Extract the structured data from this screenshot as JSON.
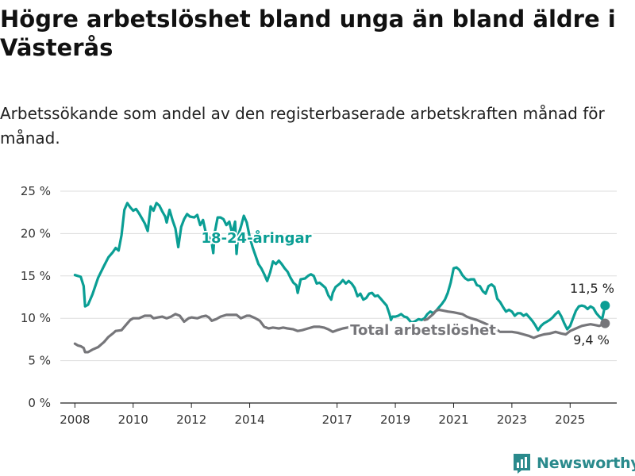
{
  "title": "Högre arbetslöshet bland unga än bland äldre i Västerås",
  "subtitle": "Arbetssökande som andel av den registerbaserade arbetskraften månad för månad.",
  "brand": "Newsworthy",
  "colors": {
    "youth": "#0a9e94",
    "total": "#76767a",
    "grid": "#dddddd",
    "brand": "#2a8a8c"
  },
  "chart_data": {
    "type": "line",
    "x_unit": "year (decimal)",
    "ylim": [
      0,
      25
    ],
    "xlim": [
      2007.5,
      2026.6
    ],
    "y_ticks": [
      0,
      5,
      10,
      15,
      20,
      25
    ],
    "y_tick_labels": [
      "0 %",
      "5 %",
      "10 %",
      "15 %",
      "20 %",
      "25 %"
    ],
    "x_ticks": [
      2008,
      2010,
      2012,
      2014,
      2017,
      2019,
      2021,
      2023,
      2025
    ],
    "x_tick_labels": [
      "2008",
      "2010",
      "2012",
      "2014",
      "2017",
      "2019",
      "2021",
      "2023",
      "2025"
    ],
    "grid": "horizontal",
    "series": [
      {
        "name": "18-24-åringar",
        "end_label": "11,5 %",
        "points": [
          [
            2008.0,
            15.1
          ],
          [
            2008.1,
            15.0
          ],
          [
            2008.2,
            14.9
          ],
          [
            2008.3,
            13.8
          ],
          [
            2008.35,
            11.4
          ],
          [
            2008.45,
            11.6
          ],
          [
            2008.6,
            12.8
          ],
          [
            2008.8,
            14.8
          ],
          [
            2009.0,
            16.2
          ],
          [
            2009.15,
            17.2
          ],
          [
            2009.3,
            17.8
          ],
          [
            2009.4,
            18.3
          ],
          [
            2009.5,
            18.0
          ],
          [
            2009.6,
            19.8
          ],
          [
            2009.7,
            22.8
          ],
          [
            2009.8,
            23.6
          ],
          [
            2009.9,
            23.1
          ],
          [
            2010.0,
            22.7
          ],
          [
            2010.1,
            22.9
          ],
          [
            2010.2,
            22.4
          ],
          [
            2010.3,
            21.8
          ],
          [
            2010.4,
            21.2
          ],
          [
            2010.5,
            20.3
          ],
          [
            2010.6,
            23.2
          ],
          [
            2010.7,
            22.7
          ],
          [
            2010.8,
            23.6
          ],
          [
            2010.9,
            23.3
          ],
          [
            2011.0,
            22.6
          ],
          [
            2011.1,
            22.0
          ],
          [
            2011.15,
            21.3
          ],
          [
            2011.25,
            22.8
          ],
          [
            2011.35,
            21.6
          ],
          [
            2011.45,
            20.6
          ],
          [
            2011.55,
            18.4
          ],
          [
            2011.65,
            20.8
          ],
          [
            2011.75,
            21.7
          ],
          [
            2011.85,
            22.3
          ],
          [
            2011.95,
            22.0
          ],
          [
            2012.1,
            21.9
          ],
          [
            2012.2,
            22.2
          ],
          [
            2012.3,
            21.0
          ],
          [
            2012.4,
            21.6
          ],
          [
            2012.5,
            20.0
          ],
          [
            2012.6,
            19.6
          ],
          [
            2012.7,
            18.9
          ],
          [
            2012.75,
            17.7
          ],
          [
            2012.8,
            20.1
          ],
          [
            2012.9,
            21.9
          ],
          [
            2013.0,
            21.9
          ],
          [
            2013.1,
            21.7
          ],
          [
            2013.2,
            21.0
          ],
          [
            2013.3,
            21.4
          ],
          [
            2013.4,
            20.0
          ],
          [
            2013.5,
            21.4
          ],
          [
            2013.55,
            17.6
          ],
          [
            2013.6,
            19.7
          ],
          [
            2013.7,
            20.8
          ],
          [
            2013.8,
            22.1
          ],
          [
            2013.9,
            21.3
          ],
          [
            2014.0,
            19.6
          ],
          [
            2014.1,
            18.4
          ],
          [
            2014.2,
            17.4
          ],
          [
            2014.3,
            16.4
          ],
          [
            2014.4,
            15.9
          ],
          [
            2014.5,
            15.2
          ],
          [
            2014.6,
            14.4
          ],
          [
            2014.7,
            15.4
          ],
          [
            2014.8,
            16.7
          ],
          [
            2014.9,
            16.4
          ],
          [
            2015.0,
            16.8
          ],
          [
            2015.1,
            16.4
          ],
          [
            2015.2,
            15.9
          ],
          [
            2015.3,
            15.5
          ],
          [
            2015.4,
            14.8
          ],
          [
            2015.5,
            14.2
          ],
          [
            2015.6,
            13.9
          ],
          [
            2015.65,
            13.0
          ],
          [
            2015.75,
            14.6
          ],
          [
            2015.9,
            14.7
          ],
          [
            2016.0,
            15.0
          ],
          [
            2016.1,
            15.2
          ],
          [
            2016.2,
            15.0
          ],
          [
            2016.3,
            14.1
          ],
          [
            2016.4,
            14.2
          ],
          [
            2016.5,
            13.9
          ],
          [
            2016.6,
            13.6
          ],
          [
            2016.7,
            12.7
          ],
          [
            2016.8,
            12.2
          ],
          [
            2016.85,
            13.0
          ],
          [
            2016.95,
            13.7
          ],
          [
            2017.1,
            14.1
          ],
          [
            2017.2,
            14.5
          ],
          [
            2017.3,
            14.1
          ],
          [
            2017.4,
            14.4
          ],
          [
            2017.5,
            14.1
          ],
          [
            2017.6,
            13.6
          ],
          [
            2017.7,
            12.6
          ],
          [
            2017.8,
            12.9
          ],
          [
            2017.9,
            12.2
          ],
          [
            2018.0,
            12.4
          ],
          [
            2018.1,
            12.9
          ],
          [
            2018.2,
            13.0
          ],
          [
            2018.3,
            12.6
          ],
          [
            2018.4,
            12.7
          ],
          [
            2018.5,
            12.3
          ],
          [
            2018.6,
            11.9
          ],
          [
            2018.7,
            11.5
          ],
          [
            2018.8,
            10.5
          ],
          [
            2018.85,
            9.8
          ],
          [
            2018.9,
            10.2
          ],
          [
            2019.0,
            10.2
          ],
          [
            2019.1,
            10.3
          ],
          [
            2019.2,
            10.5
          ],
          [
            2019.3,
            10.2
          ],
          [
            2019.4,
            10.1
          ],
          [
            2019.5,
            9.7
          ],
          [
            2019.55,
            9.5
          ],
          [
            2019.65,
            9.6
          ],
          [
            2019.8,
            9.9
          ],
          [
            2019.9,
            9.8
          ],
          [
            2020.0,
            10.0
          ],
          [
            2020.1,
            10.5
          ],
          [
            2020.2,
            10.8
          ],
          [
            2020.3,
            10.6
          ],
          [
            2020.4,
            10.9
          ],
          [
            2020.5,
            11.3
          ],
          [
            2020.6,
            11.7
          ],
          [
            2020.7,
            12.2
          ],
          [
            2020.8,
            13.0
          ],
          [
            2020.9,
            14.2
          ],
          [
            2021.0,
            15.9
          ],
          [
            2021.1,
            16.0
          ],
          [
            2021.2,
            15.7
          ],
          [
            2021.3,
            15.1
          ],
          [
            2021.4,
            14.7
          ],
          [
            2021.5,
            14.5
          ],
          [
            2021.6,
            14.6
          ],
          [
            2021.7,
            14.6
          ],
          [
            2021.8,
            13.9
          ],
          [
            2021.9,
            13.8
          ],
          [
            2022.0,
            13.2
          ],
          [
            2022.1,
            12.9
          ],
          [
            2022.2,
            13.8
          ],
          [
            2022.3,
            14.0
          ],
          [
            2022.4,
            13.7
          ],
          [
            2022.5,
            12.3
          ],
          [
            2022.6,
            11.9
          ],
          [
            2022.7,
            11.3
          ],
          [
            2022.8,
            10.8
          ],
          [
            2022.9,
            11.0
          ],
          [
            2023.0,
            10.8
          ],
          [
            2023.1,
            10.3
          ],
          [
            2023.2,
            10.6
          ],
          [
            2023.3,
            10.6
          ],
          [
            2023.4,
            10.3
          ],
          [
            2023.5,
            10.5
          ],
          [
            2023.6,
            10.1
          ],
          [
            2023.7,
            9.7
          ],
          [
            2023.8,
            9.2
          ],
          [
            2023.9,
            8.6
          ],
          [
            2024.0,
            9.1
          ],
          [
            2024.1,
            9.4
          ],
          [
            2024.2,
            9.6
          ],
          [
            2024.3,
            9.8
          ],
          [
            2024.4,
            10.1
          ],
          [
            2024.5,
            10.5
          ],
          [
            2024.6,
            10.8
          ],
          [
            2024.7,
            10.2
          ],
          [
            2024.8,
            9.4
          ],
          [
            2024.9,
            8.7
          ],
          [
            2025.0,
            9.1
          ],
          [
            2025.1,
            10.0
          ],
          [
            2025.2,
            10.9
          ],
          [
            2025.3,
            11.4
          ],
          [
            2025.4,
            11.5
          ],
          [
            2025.5,
            11.4
          ],
          [
            2025.6,
            11.1
          ],
          [
            2025.7,
            11.4
          ],
          [
            2025.8,
            11.2
          ],
          [
            2025.9,
            10.6
          ],
          [
            2026.0,
            10.2
          ],
          [
            2026.1,
            9.9
          ],
          [
            2026.2,
            11.5
          ]
        ]
      },
      {
        "name": "Total arbetslöshet",
        "end_label": "9,4 %",
        "points": [
          [
            2008.0,
            7.0
          ],
          [
            2008.1,
            6.8
          ],
          [
            2008.2,
            6.7
          ],
          [
            2008.3,
            6.5
          ],
          [
            2008.35,
            6.0
          ],
          [
            2008.45,
            6.0
          ],
          [
            2008.6,
            6.3
          ],
          [
            2008.8,
            6.6
          ],
          [
            2009.0,
            7.2
          ],
          [
            2009.15,
            7.8
          ],
          [
            2009.3,
            8.2
          ],
          [
            2009.4,
            8.5
          ],
          [
            2009.6,
            8.6
          ],
          [
            2009.75,
            9.2
          ],
          [
            2009.9,
            9.8
          ],
          [
            2010.0,
            10.0
          ],
          [
            2010.2,
            10.0
          ],
          [
            2010.4,
            10.3
          ],
          [
            2010.6,
            10.3
          ],
          [
            2010.7,
            10.0
          ],
          [
            2010.85,
            10.1
          ],
          [
            2011.0,
            10.2
          ],
          [
            2011.15,
            10.0
          ],
          [
            2011.3,
            10.2
          ],
          [
            2011.45,
            10.5
          ],
          [
            2011.6,
            10.3
          ],
          [
            2011.75,
            9.6
          ],
          [
            2011.9,
            10.0
          ],
          [
            2012.0,
            10.1
          ],
          [
            2012.2,
            10.0
          ],
          [
            2012.35,
            10.2
          ],
          [
            2012.5,
            10.3
          ],
          [
            2012.6,
            10.1
          ],
          [
            2012.7,
            9.7
          ],
          [
            2012.85,
            9.9
          ],
          [
            2013.0,
            10.2
          ],
          [
            2013.2,
            10.4
          ],
          [
            2013.4,
            10.4
          ],
          [
            2013.55,
            10.4
          ],
          [
            2013.7,
            10.0
          ],
          [
            2013.9,
            10.3
          ],
          [
            2014.0,
            10.3
          ],
          [
            2014.2,
            10.0
          ],
          [
            2014.35,
            9.7
          ],
          [
            2014.5,
            9.0
          ],
          [
            2014.65,
            8.8
          ],
          [
            2014.8,
            8.9
          ],
          [
            2015.0,
            8.8
          ],
          [
            2015.15,
            8.9
          ],
          [
            2015.3,
            8.8
          ],
          [
            2015.5,
            8.7
          ],
          [
            2015.65,
            8.5
          ],
          [
            2015.8,
            8.6
          ],
          [
            2016.0,
            8.8
          ],
          [
            2016.2,
            9.0
          ],
          [
            2016.4,
            9.0
          ],
          [
            2016.55,
            8.9
          ],
          [
            2016.7,
            8.7
          ],
          [
            2016.85,
            8.4
          ],
          [
            2017.0,
            8.6
          ],
          [
            2017.2,
            8.8
          ],
          [
            2017.35,
            8.9
          ],
          [
            2017.45,
            9.0
          ]
        ]
      },
      {
        "name": "",
        "points": [
          [
            2020.0,
            9.8
          ],
          [
            2020.1,
            9.9
          ],
          [
            2020.2,
            10.2
          ],
          [
            2020.3,
            10.5
          ],
          [
            2020.4,
            10.9
          ],
          [
            2020.5,
            11.0
          ],
          [
            2020.65,
            10.9
          ],
          [
            2020.8,
            10.8
          ],
          [
            2021.0,
            10.7
          ],
          [
            2021.15,
            10.6
          ],
          [
            2021.3,
            10.5
          ],
          [
            2021.45,
            10.2
          ],
          [
            2021.6,
            10.0
          ],
          [
            2021.8,
            9.8
          ],
          [
            2022.0,
            9.5
          ],
          [
            2022.2,
            9.2
          ],
          [
            2022.4,
            8.8
          ],
          [
            2022.55,
            8.5
          ]
        ]
      },
      {
        "name": "",
        "end_label": "",
        "points": [
          [
            2022.6,
            8.4
          ],
          [
            2022.8,
            8.4
          ],
          [
            2023.0,
            8.4
          ],
          [
            2023.2,
            8.3
          ],
          [
            2023.4,
            8.1
          ],
          [
            2023.6,
            7.9
          ],
          [
            2023.75,
            7.7
          ],
          [
            2023.9,
            7.9
          ],
          [
            2024.1,
            8.1
          ],
          [
            2024.3,
            8.2
          ],
          [
            2024.5,
            8.4
          ],
          [
            2024.7,
            8.2
          ],
          [
            2024.85,
            8.1
          ],
          [
            2025.0,
            8.5
          ],
          [
            2025.2,
            8.8
          ],
          [
            2025.4,
            9.1
          ],
          [
            2025.55,
            9.2
          ],
          [
            2025.7,
            9.3
          ],
          [
            2025.85,
            9.2
          ],
          [
            2026.0,
            9.1
          ],
          [
            2026.2,
            9.4
          ]
        ]
      }
    ]
  }
}
